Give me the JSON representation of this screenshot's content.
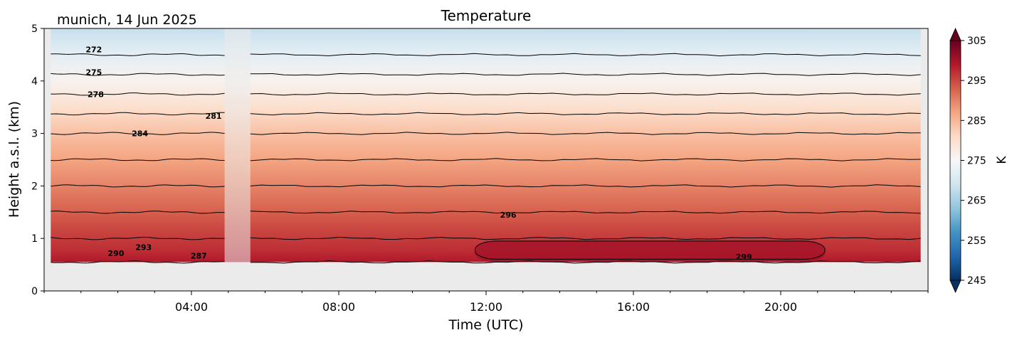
{
  "chart_data": {
    "type": "heatmap",
    "title": "Temperature",
    "subtitle": "munich, 14 Jun 2025",
    "xlabel": "Time (UTC)",
    "ylabel": "Height a.s.l. (km)",
    "xlim": [
      0,
      24
    ],
    "ylim": [
      0,
      5
    ],
    "x_ticks": [
      {
        "hours": 4,
        "label": "04:00"
      },
      {
        "hours": 8,
        "label": "08:00"
      },
      {
        "hours": 12,
        "label": "12:00"
      },
      {
        "hours": 16,
        "label": "16:00"
      },
      {
        "hours": 20,
        "label": "20:00"
      }
    ],
    "y_ticks": [
      0,
      1,
      2,
      3,
      4,
      5
    ],
    "data_extent": {
      "time_start": 0.18,
      "time_end": 23.8,
      "height_bottom": 0.55,
      "height_top": 5.0
    },
    "missing_data_gap": {
      "time_start": 4.9,
      "time_end": 5.6
    },
    "missing_color": "#ebebeb",
    "profile": {
      "heights_km": [
        0.55,
        0.8,
        1.0,
        1.2,
        1.5,
        2.0,
        2.5,
        3.0,
        3.5,
        4.0,
        4.5,
        5.0
      ],
      "temperature_K": [
        299,
        297,
        296,
        295,
        293,
        290,
        287,
        284,
        280,
        276,
        272,
        268
      ]
    },
    "warm_core": {
      "time_start": 11.7,
      "time_end": 21.2,
      "height_bottom": 0.55,
      "height_top": 0.95,
      "temperature_K": 300
    },
    "contour_lines_K": [
      272,
      275,
      278,
      281,
      284,
      287,
      290,
      293,
      296,
      299
    ],
    "contour_labels": [
      {
        "value": "272",
        "time": 1.35,
        "height": 4.6
      },
      {
        "value": "275",
        "time": 1.35,
        "height": 4.17
      },
      {
        "value": "278",
        "time": 1.4,
        "height": 3.75
      },
      {
        "value": "281",
        "time": 4.6,
        "height": 3.33
      },
      {
        "value": "284",
        "time": 2.6,
        "height": 3.0
      },
      {
        "value": "296",
        "time": 12.6,
        "height": 1.45
      },
      {
        "value": "293",
        "time": 2.7,
        "height": 0.83
      },
      {
        "value": "290",
        "time": 1.95,
        "height": 0.72
      },
      {
        "value": "287",
        "time": 4.2,
        "height": 0.67
      },
      {
        "value": "299",
        "time": 19.0,
        "height": 0.65
      }
    ],
    "colorbar": {
      "label": "K",
      "min": 245,
      "max": 305,
      "ticks": [
        245,
        255,
        265,
        275,
        285,
        295,
        305
      ],
      "extend": "both",
      "colormap": "RdBu_r"
    }
  }
}
